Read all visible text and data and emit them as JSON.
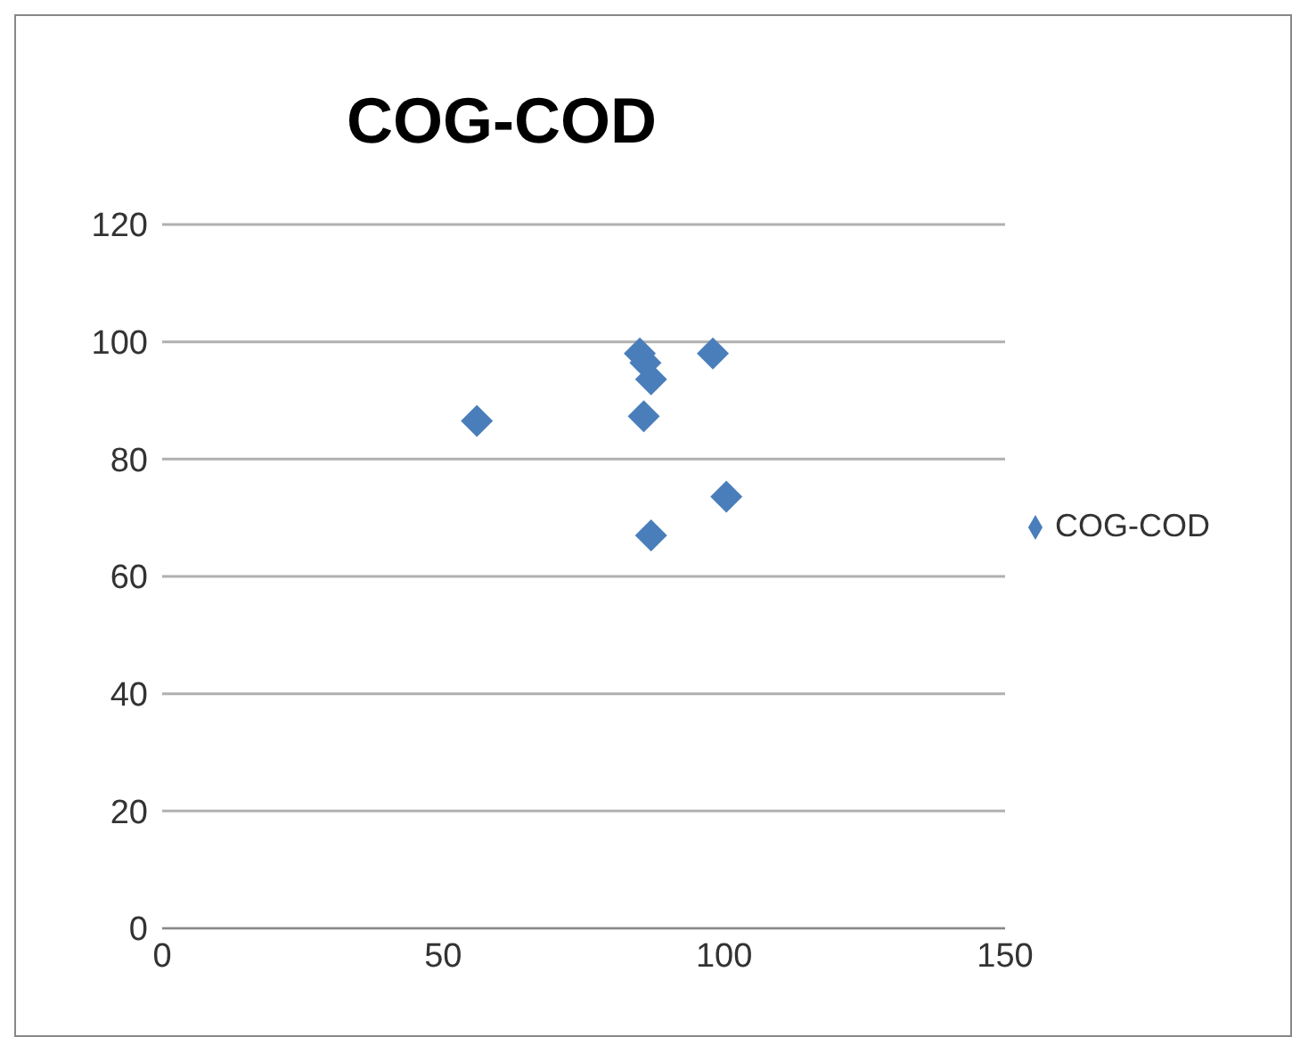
{
  "chart_data": {
    "type": "scatter",
    "title": "COG-COD",
    "x": [
      56,
      85,
      98,
      86,
      87,
      85.7,
      100.4,
      87
    ],
    "series": [
      {
        "name": "COG-COD",
        "color": "#4a7ebb",
        "values": [
          86.5,
          98,
          98,
          96.4,
          93.6,
          87.3,
          73.6,
          67
        ]
      }
    ],
    "xlim": [
      0,
      150
    ],
    "xticks": [
      0,
      50,
      100,
      150
    ],
    "ylim": [
      0,
      120
    ],
    "yticks": [
      0,
      20,
      40,
      60,
      80,
      100,
      120
    ],
    "grid": "y",
    "legend": "right",
    "marker": "diamond"
  }
}
